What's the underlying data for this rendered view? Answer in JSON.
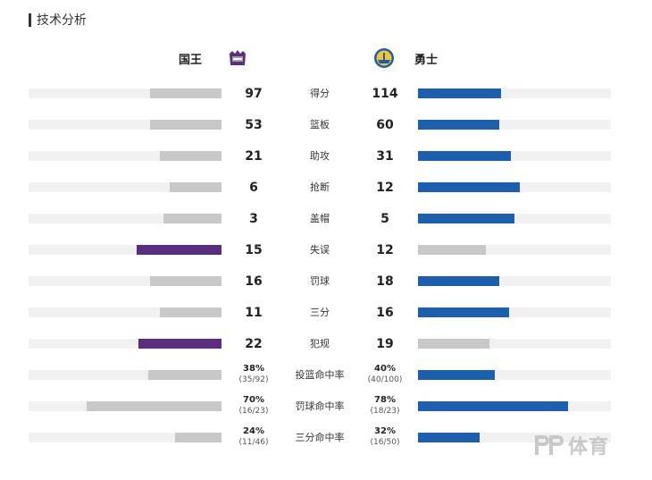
{
  "section": {
    "title": "技术分析"
  },
  "teams": {
    "home": {
      "name": "国王",
      "logo": "sacramento-kings-logo",
      "color": "#5a2d81"
    },
    "away": {
      "name": "勇士",
      "logo": "golden-state-warriors-logo",
      "color": "#1d5fad"
    }
  },
  "colors": {
    "neutral_bar": "#c8c8c8",
    "track": "#f1f1f1"
  },
  "stats": [
    {
      "label": "得分",
      "home": "97",
      "away": "114",
      "home_share": 0.37,
      "away_share": 0.43,
      "leader": "away"
    },
    {
      "label": "篮板",
      "home": "53",
      "away": "60",
      "home_share": 0.37,
      "away_share": 0.42,
      "leader": "away"
    },
    {
      "label": "助攻",
      "home": "21",
      "away": "31",
      "home_share": 0.32,
      "away_share": 0.48,
      "leader": "away"
    },
    {
      "label": "抢断",
      "home": "6",
      "away": "12",
      "home_share": 0.27,
      "away_share": 0.53,
      "leader": "away"
    },
    {
      "label": "盖帽",
      "home": "3",
      "away": "5",
      "home_share": 0.3,
      "away_share": 0.5,
      "leader": "away"
    },
    {
      "label": "失误",
      "home": "15",
      "away": "12",
      "home_share": 0.44,
      "away_share": 0.35,
      "leader": "home"
    },
    {
      "label": "罚球",
      "home": "16",
      "away": "18",
      "home_share": 0.37,
      "away_share": 0.42,
      "leader": "away"
    },
    {
      "label": "三分",
      "home": "11",
      "away": "16",
      "home_share": 0.32,
      "away_share": 0.47,
      "leader": "away"
    },
    {
      "label": "犯规",
      "home": "22",
      "away": "19",
      "home_share": 0.43,
      "away_share": 0.37,
      "leader": "home"
    },
    {
      "label": "投篮命中率",
      "home": "38%",
      "home_detail": "(35/92)",
      "away": "40%",
      "away_detail": "(40/100)",
      "home_share": 0.38,
      "away_share": 0.4,
      "leader": "away"
    },
    {
      "label": "罚球命中率",
      "home": "70%",
      "home_detail": "(16/23)",
      "away": "78%",
      "away_detail": "(18/23)",
      "home_share": 0.7,
      "away_share": 0.78,
      "leader": "away"
    },
    {
      "label": "三分命中率",
      "home": "24%",
      "home_detail": "(11/46)",
      "away": "32%",
      "away_detail": "(16/50)",
      "home_share": 0.24,
      "away_share": 0.32,
      "leader": "away"
    }
  ],
  "watermark": {
    "brand": "PP体育",
    "text": "体育"
  }
}
